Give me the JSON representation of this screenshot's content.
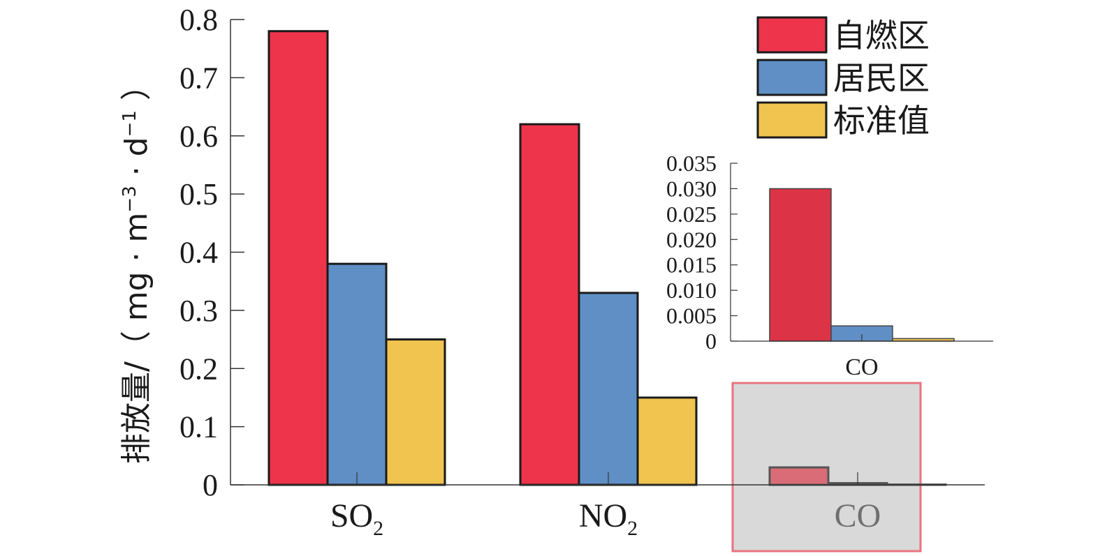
{
  "chart_data": [
    {
      "type": "bar",
      "categories": [
        "SO2",
        "NO2",
        "CO"
      ],
      "category_labels": [
        {
          "main": "SO",
          "sub": "2"
        },
        {
          "main": "NO",
          "sub": "2"
        },
        {
          "main": "CO",
          "sub": ""
        }
      ],
      "series": [
        {
          "name": "自燃区",
          "color": "#ee344b",
          "values": [
            0.78,
            0.62,
            0.03
          ]
        },
        {
          "name": "居民区",
          "color": "#5f8fc4",
          "values": [
            0.38,
            0.33,
            0.003
          ]
        },
        {
          "name": "标准值",
          "color": "#f1c44f",
          "values": [
            0.25,
            0.15,
            0.0005
          ]
        }
      ],
      "ylabel": {
        "prefix": "排放量/（ mg · m",
        "sup1": "−3",
        "middle": " · d",
        "sup2": "−1",
        "suffix": " ）"
      },
      "ylim": [
        0,
        0.8
      ],
      "yticks": [
        "0",
        "0.1",
        "0.2",
        "0.3",
        "0.4",
        "0.5",
        "0.6",
        "0.7",
        "0.8"
      ],
      "legend_position": "top-right",
      "grid": false,
      "highlight_category": "CO",
      "highlight_color": "#e8747e"
    },
    {
      "type": "bar",
      "role": "inset",
      "categories": [
        "CO"
      ],
      "series": [
        {
          "name": "自燃区",
          "color": "#dd3346",
          "values": [
            0.03
          ]
        },
        {
          "name": "居民区",
          "color": "#5f8fc4",
          "values": [
            0.003
          ]
        },
        {
          "name": "标准值",
          "color": "#f1c44f",
          "values": [
            0.0005
          ]
        }
      ],
      "ylim": [
        0,
        0.035
      ],
      "yticks": [
        "0",
        "0.005",
        "0.010",
        "0.015",
        "0.020",
        "0.025",
        "0.030",
        "0.035"
      ],
      "grid": false
    }
  ]
}
